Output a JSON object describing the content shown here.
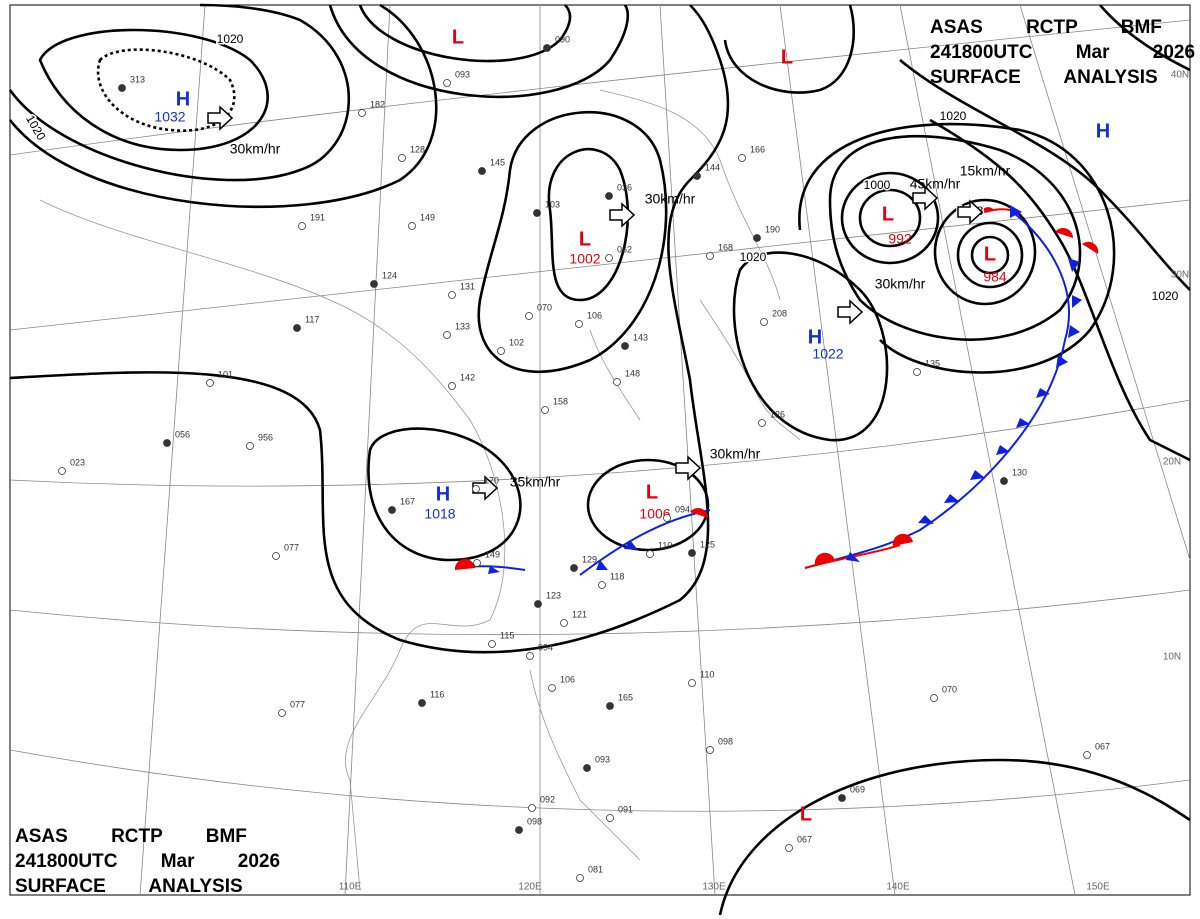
{
  "header_top": {
    "lines": [
      "ASAS RCTP BMF",
      "241800UTC Mar 2026",
      "SURFACE ANALYSIS"
    ]
  },
  "header_bottom": {
    "lines": [
      "ASAS RCTP BMF",
      "241800UTC Mar 2026",
      "SURFACE ANALYSIS"
    ]
  },
  "pressure_centers": [
    {
      "type": "H",
      "value": "1032"
    },
    {
      "type": "L"
    },
    {
      "type": "L"
    },
    {
      "type": "H"
    },
    {
      "type": "L",
      "value": "1002"
    },
    {
      "type": "L",
      "value": "992"
    },
    {
      "type": "L",
      "value": "984"
    },
    {
      "type": "H",
      "value": "1022"
    },
    {
      "type": "H",
      "value": "1018"
    },
    {
      "type": "L",
      "value": "1006"
    },
    {
      "type": "L"
    }
  ],
  "isobar_labels": [
    "1020",
    "1020",
    "1000",
    "1020",
    "1020",
    "1020",
    "1008"
  ],
  "motion_labels": [
    "30km/hr",
    "30km/hr",
    "45km/hr",
    "15km/hr",
    "30km/hr",
    "35km/hr",
    "30km/hr"
  ],
  "latitude_labels": [
    "40N",
    "30N",
    "20N",
    "10N"
  ],
  "longitude_labels": [
    "110E",
    "120E",
    "130E",
    "140E",
    "150E"
  ],
  "stations": [
    "313",
    "182",
    "128",
    "145",
    "149",
    "191",
    "124",
    "131",
    "133",
    "117",
    "101",
    "142",
    "056",
    "956",
    "023",
    "103",
    "070",
    "102",
    "036",
    "062",
    "106",
    "143",
    "148",
    "158",
    "144",
    "166",
    "168",
    "190",
    "208",
    "135",
    "130",
    "126",
    "170",
    "167",
    "077",
    "149",
    "129",
    "118",
    "110",
    "125",
    "094",
    "115",
    "116",
    "077",
    "094",
    "123",
    "121",
    "106",
    "165",
    "110",
    "098",
    "093",
    "091",
    "092",
    "098",
    "081",
    "067",
    "069",
    "070",
    "067",
    "090",
    "093"
  ]
}
